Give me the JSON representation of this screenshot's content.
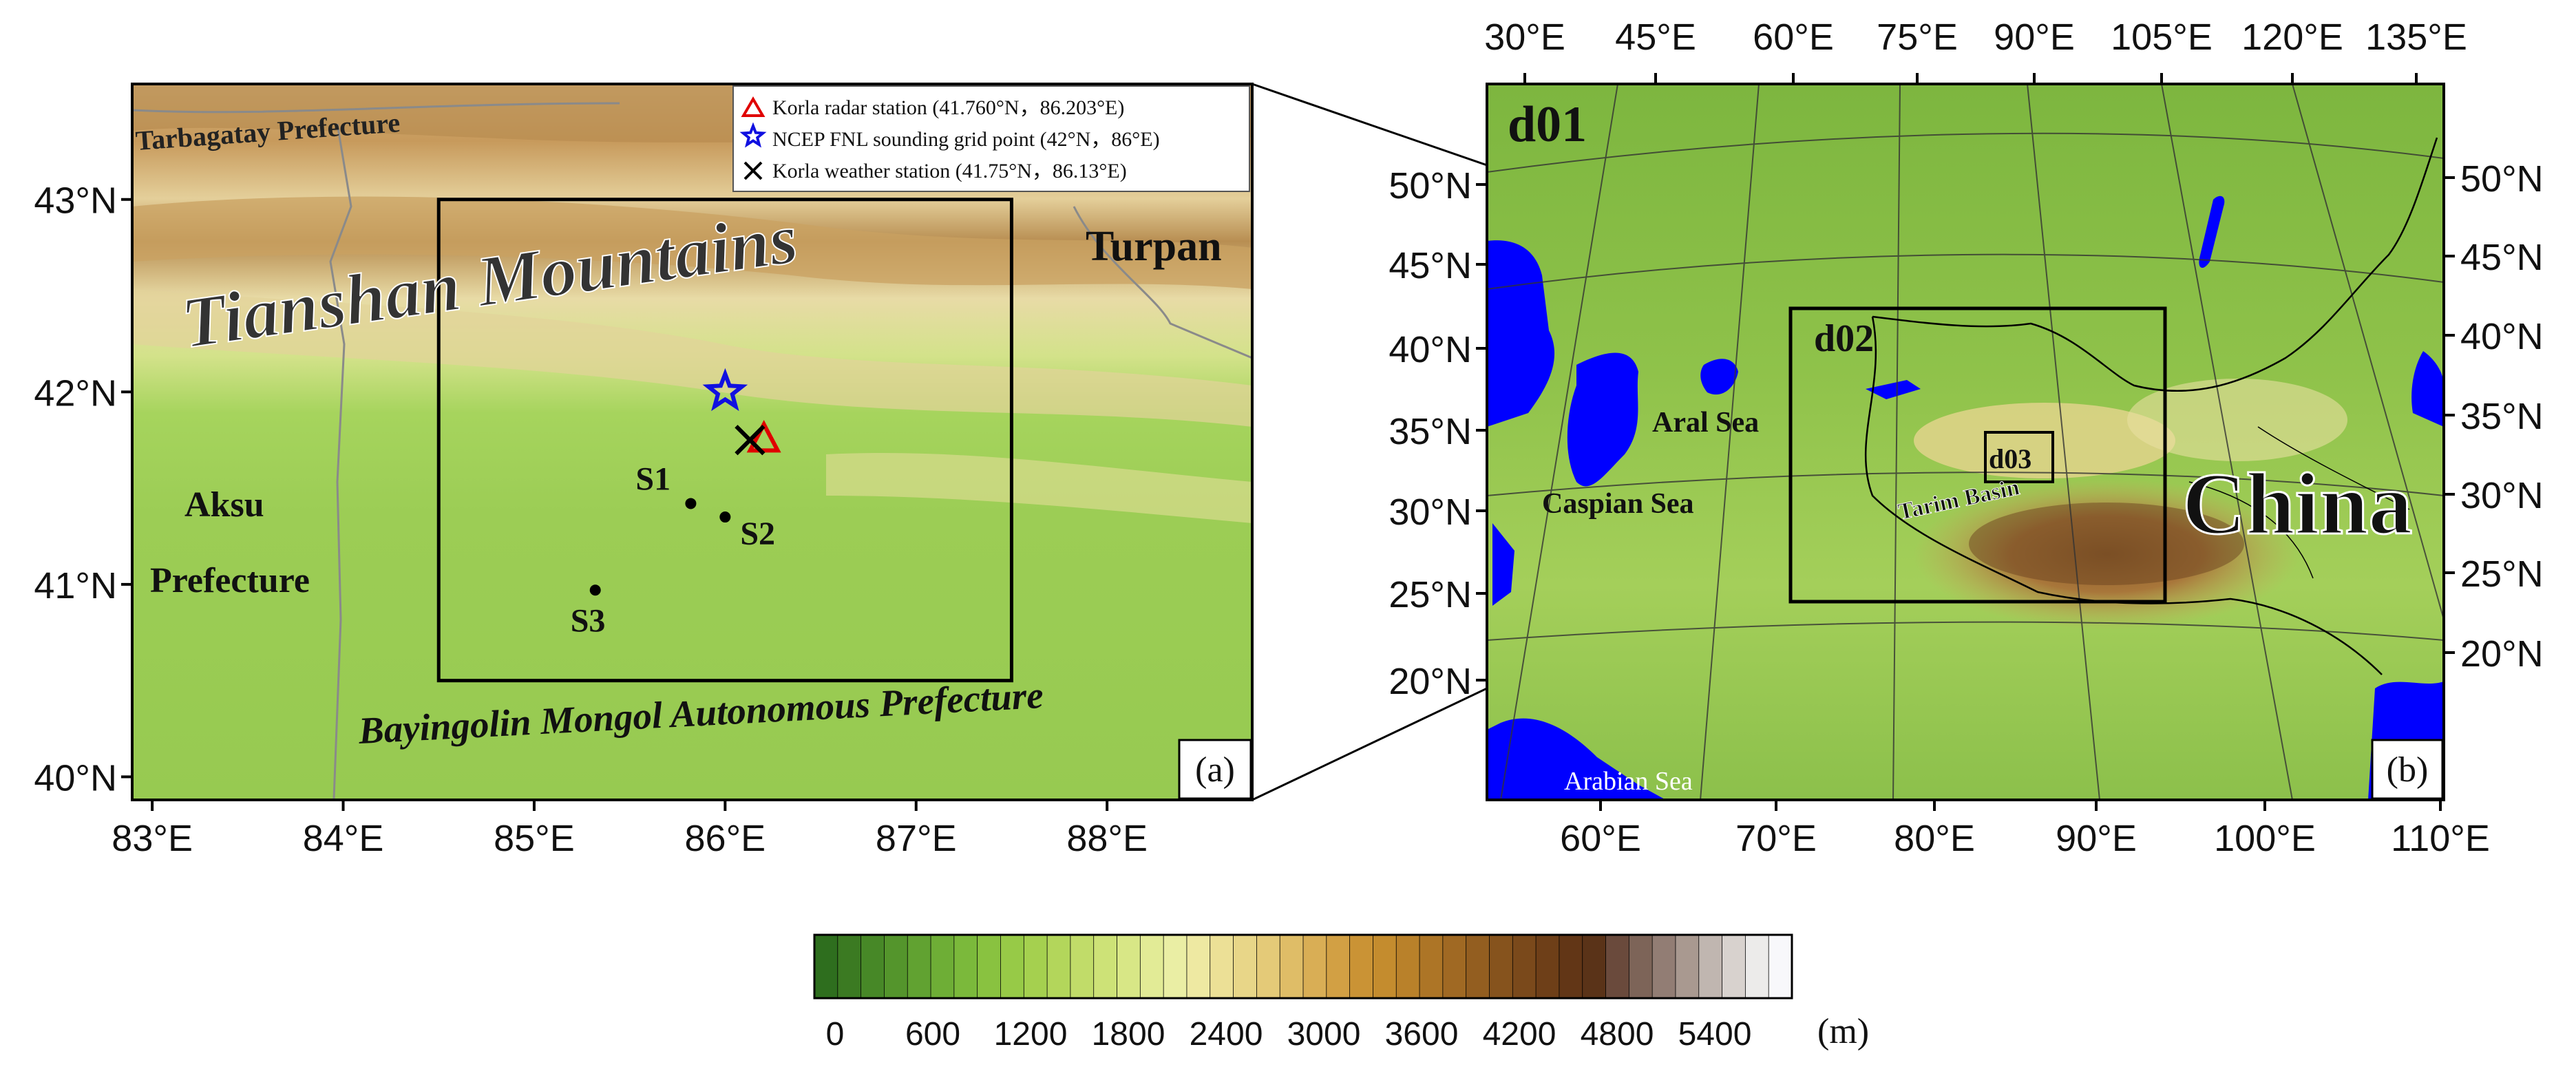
{
  "panel_a": {
    "panel_label": "(a)",
    "legend": [
      {
        "marker": "red-triangle",
        "text": "Korla radar station (41.760°N，86.203°E)"
      },
      {
        "marker": "blue-star",
        "text": "NCEP FNL sounding grid point (42°N，86°E)"
      },
      {
        "marker": "black-x",
        "text": "Korla weather station (41.75°N，86.13°E)"
      }
    ],
    "region_labels": {
      "tarbagatay": "Tarbagatay Prefecture",
      "tianshan": "Tianshan Mountains",
      "turpan": "Turpan",
      "aksu_1": "Aksu",
      "aksu_2": "Prefecture",
      "bayingolin": "Bayingolin Mongol Autonomous Prefecture"
    },
    "stations": [
      {
        "name": "S1",
        "lat": 41.42,
        "lon": 85.82
      },
      {
        "name": "S2",
        "lat": 41.35,
        "lon": 86.0
      },
      {
        "name": "S3",
        "lat": 40.97,
        "lon": 85.32
      }
    ],
    "markers": {
      "radar": {
        "lat": 41.76,
        "lon": 86.203
      },
      "sounding": {
        "lat": 42.0,
        "lon": 86.0
      },
      "weather": {
        "lat": 41.75,
        "lon": 86.13
      }
    },
    "inner_box": {
      "lat_min": 40.5,
      "lat_max": 43.0,
      "lon_min": 84.5,
      "lon_max": 87.5
    },
    "lat_ticks": [
      "40°N",
      "41°N",
      "42°N",
      "43°N"
    ],
    "lon_ticks": [
      "83°E",
      "84°E",
      "85°E",
      "86°E",
      "87°E",
      "88°E"
    ]
  },
  "panel_b": {
    "panel_label": "(b)",
    "domain_labels": {
      "d01": "d01",
      "d02": "d02",
      "d03": "d03"
    },
    "place_labels": {
      "aral": "Aral Sea",
      "caspian": "Caspian Sea",
      "tarim": "Tarim Basin",
      "china": "China",
      "arabian": "Arabian Sea"
    },
    "top_ticks": [
      "30°E",
      "45°E",
      "60°E",
      "75°E",
      "90°E",
      "105°E",
      "120°E",
      "135°E"
    ],
    "bottom_ticks": [
      "60°E",
      "70°E",
      "80°E",
      "90°E",
      "100°E",
      "110°E"
    ],
    "left_ticks": [
      "50°N",
      "45°N",
      "40°N",
      "35°N",
      "30°N",
      "25°N",
      "20°N"
    ],
    "right_ticks": [
      "50°N",
      "45°N",
      "40°N",
      "35°N",
      "30°N",
      "25°N",
      "20°N"
    ]
  },
  "colorbar": {
    "unit": "(m)",
    "tick_labels": [
      "0",
      "600",
      "1200",
      "1800",
      "2400",
      "3000",
      "3600",
      "4200",
      "4800",
      "5400"
    ],
    "colors": [
      "#2e6e1e",
      "#3b7a22",
      "#478827",
      "#54952c",
      "#61a231",
      "#6eae36",
      "#7bb93b",
      "#89c240",
      "#97ca47",
      "#a5d04f",
      "#b3d65b",
      "#c1dc69",
      "#cde277",
      "#d8e786",
      "#e2eb96",
      "#eaeea4",
      "#eee9a2",
      "#ece096",
      "#e8d688",
      "#e4ca78",
      "#dfbd67",
      "#d9ae55",
      "#d2a044",
      "#ca9335",
      "#c48c2e",
      "#b9812a",
      "#ad7526",
      "#a06923",
      "#935e20",
      "#86531d",
      "#7a491b",
      "#6e3f18",
      "#623616",
      "#5a3318",
      "#6a4a3c",
      "#7d6458",
      "#927d74",
      "#a99990",
      "#c0b6b0",
      "#d8d2ce",
      "#ecebea",
      "#f8f8fb"
    ]
  }
}
